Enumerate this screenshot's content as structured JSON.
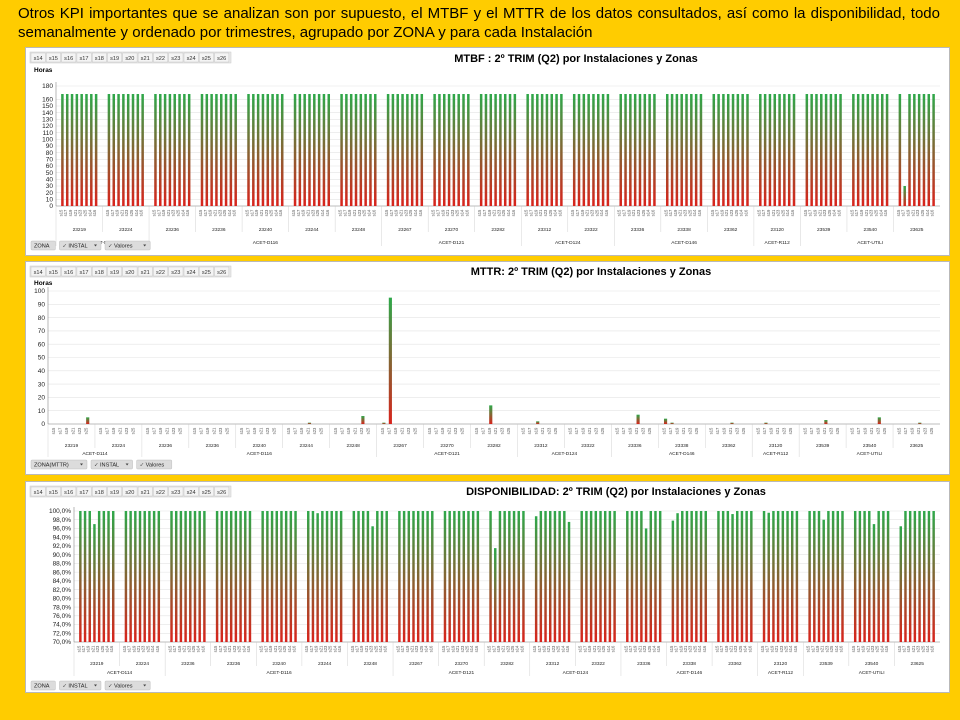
{
  "intro_text": "Otros KPI importantes que se analizan son por supuesto, el MTBF y el MTTR de  los datos consultados, así como la disponibilidad, todo semanalmente y ordenado por trimestres, agrupado por ZONA y para cada Instalación",
  "week_buttons": [
    "s14",
    "s15",
    "s16",
    "s17",
    "s18",
    "s19",
    "s20",
    "s21",
    "s22",
    "s23",
    "s24",
    "s25",
    "s26"
  ],
  "colors": {
    "page_bg": "#ffcc00",
    "bar_top": "#2ea84a",
    "bar_bottom": "#d9231c",
    "grid": "#e3e3e3",
    "field_button": "#dcdcdc"
  },
  "categories_x": [
    "s14",
    "s15",
    "s16",
    "s17",
    "s18",
    "s19",
    "s20",
    "s21",
    "s22",
    "s23",
    "s24",
    "s25",
    "s26"
  ],
  "chart_data": [
    {
      "type": "bar",
      "title": "MTBF :  2º TRIM (Q2) por Instalaciones y Zonas",
      "ylabel": "Horas",
      "ylim": [
        0,
        180
      ],
      "yticks": [
        0,
        10,
        20,
        30,
        40,
        50,
        60,
        70,
        80,
        90,
        100,
        110,
        120,
        130,
        140,
        150,
        160,
        180
      ],
      "bars_per_installation": 8,
      "installations": [
        "23219",
        "23224",
        "23236",
        "23236",
        "23240",
        "23244",
        "23248",
        "23267",
        "23270",
        "23282",
        "23312",
        "23322",
        "23336",
        "23338",
        "23362",
        "23120",
        "23539",
        "23540",
        "23625"
      ],
      "zones": [
        {
          "label": "ACET-D114",
          "span": 2
        },
        {
          "label": "ACET-D116",
          "span": 5
        },
        {
          "label": "ACET-D121",
          "span": 3
        },
        {
          "label": "ACET-D124",
          "span": 2
        },
        {
          "label": "ACET-D146",
          "span": 3
        },
        {
          "label": "ACET-R112",
          "span": 1
        },
        {
          "label": "ACET-UTILI",
          "span": 3
        }
      ],
      "series": [
        {
          "values": [
            [
              168,
              168,
              168,
              168,
              168,
              168,
              168,
              168
            ],
            [
              168,
              168,
              168,
              168,
              168,
              168,
              168,
              168
            ],
            [
              168,
              168,
              168,
              168,
              168,
              168,
              168,
              168
            ],
            [
              168,
              168,
              168,
              168,
              168,
              168,
              168,
              168
            ],
            [
              168,
              168,
              168,
              168,
              168,
              168,
              168,
              168
            ],
            [
              168,
              168,
              168,
              168,
              168,
              168,
              168,
              168
            ],
            [
              168,
              168,
              168,
              168,
              168,
              168,
              168,
              168
            ],
            [
              168,
              168,
              168,
              168,
              168,
              168,
              168,
              168
            ],
            [
              168,
              168,
              168,
              168,
              168,
              168,
              168,
              168
            ],
            [
              168,
              168,
              168,
              168,
              168,
              168,
              168,
              168
            ],
            [
              168,
              168,
              168,
              168,
              168,
              168,
              168,
              168
            ],
            [
              168,
              168,
              168,
              168,
              168,
              168,
              168,
              168
            ],
            [
              168,
              168,
              168,
              168,
              168,
              168,
              168,
              168
            ],
            [
              168,
              168,
              168,
              168,
              168,
              168,
              168,
              168
            ],
            [
              168,
              168,
              168,
              168,
              168,
              168,
              168,
              168
            ],
            [
              168,
              168,
              168,
              168,
              168,
              168,
              168,
              168
            ],
            [
              168,
              168,
              168,
              168,
              168,
              168,
              168,
              168
            ],
            [
              168,
              168,
              168,
              168,
              168,
              168,
              168,
              168
            ],
            [
              168,
              30,
              168,
              168,
              168,
              168,
              168,
              168
            ]
          ]
        }
      ],
      "field_buttons": [
        {
          "label": "ZONA",
          "dropdown": false
        },
        {
          "label": "INSTAL",
          "dropdown": true
        },
        {
          "label": "Valores",
          "dropdown": true
        }
      ]
    },
    {
      "type": "bar",
      "title": "MTTR:  2º TRIM (Q2) por Instalaciones y Zonas",
      "ylabel": "Horas",
      "ylim": [
        0,
        100
      ],
      "yticks": [
        0,
        10,
        20,
        30,
        40,
        50,
        60,
        70,
        80,
        90,
        100
      ],
      "bars_per_installation": 6,
      "installations": [
        "23219",
        "23224",
        "23236",
        "23236",
        "23240",
        "23244",
        "23248",
        "23267",
        "23270",
        "23282",
        "23312",
        "23322",
        "23336",
        "23338",
        "23362",
        "23120",
        "23539",
        "23540",
        "23625"
      ],
      "zones": [
        {
          "label": "ACET-D114",
          "span": 2
        },
        {
          "label": "ACET-D116",
          "span": 5
        },
        {
          "label": "ACET-D121",
          "span": 3
        },
        {
          "label": "ACET-D124",
          "span": 2
        },
        {
          "label": "ACET-D146",
          "span": 3
        },
        {
          "label": "ACET-R112",
          "span": 1
        },
        {
          "label": "ACET-UTILI",
          "span": 3
        }
      ],
      "series": [
        {
          "values": [
            [
              0,
              0,
              0,
              0,
              0,
              5
            ],
            [
              0,
              0,
              0,
              0,
              0,
              0
            ],
            [
              0,
              0,
              0,
              0,
              0,
              0
            ],
            [
              0,
              0,
              0,
              0,
              0,
              0
            ],
            [
              0,
              0,
              0,
              0,
              0,
              0
            ],
            [
              0,
              0,
              0,
              1,
              0,
              0
            ],
            [
              0,
              0,
              0,
              0,
              6,
              0
            ],
            [
              1,
              95,
              0,
              0,
              0,
              0
            ],
            [
              0,
              0,
              0,
              0,
              0,
              0
            ],
            [
              0,
              0,
              14,
              0,
              0,
              0
            ],
            [
              0,
              0,
              2,
              0,
              0,
              0
            ],
            [
              0,
              0,
              0,
              0,
              0,
              0
            ],
            [
              0,
              0,
              0,
              7,
              0,
              0
            ],
            [
              4,
              1,
              0,
              0,
              0,
              0
            ],
            [
              0,
              0,
              0,
              1,
              0,
              0
            ],
            [
              0,
              1,
              0,
              0,
              0,
              0
            ],
            [
              0,
              0,
              0,
              3,
              0,
              0
            ],
            [
              0,
              0,
              0,
              0,
              5,
              0
            ],
            [
              0,
              0,
              0,
              1,
              0,
              0
            ]
          ]
        }
      ],
      "field_buttons": [
        {
          "label": "ZONA(MTTR)",
          "dropdown": true
        },
        {
          "label": "INSTAL",
          "dropdown": true
        },
        {
          "label": "Valores",
          "dropdown": false
        }
      ]
    },
    {
      "type": "bar",
      "title": "DISPONIBILIDAD:  2º TRIM (Q2) por Instalaciones y Zonas",
      "ylim": [
        70,
        100
      ],
      "yticks": [
        "70,0%",
        "72,0%",
        "74,0%",
        "76,0%",
        "78,0%",
        "80,0%",
        "82,0%",
        "84,0%",
        "86,0%",
        "88,0%",
        "90,0%",
        "92,0%",
        "94,0%",
        "96,0%",
        "98,0%",
        "100,0%"
      ],
      "bars_per_installation": 8,
      "installations": [
        "23219",
        "23224",
        "23236",
        "23236",
        "23240",
        "23244",
        "23248",
        "23267",
        "23270",
        "23282",
        "23312",
        "23322",
        "23336",
        "23338",
        "23362",
        "23120",
        "23539",
        "23540",
        "23625"
      ],
      "zones": [
        {
          "label": "ACET-D114",
          "span": 2
        },
        {
          "label": "ACET-D116",
          "span": 5
        },
        {
          "label": "ACET-D121",
          "span": 3
        },
        {
          "label": "ACET-D124",
          "span": 2
        },
        {
          "label": "ACET-D146",
          "span": 3
        },
        {
          "label": "ACET-R112",
          "span": 1
        },
        {
          "label": "ACET-UTILI",
          "span": 3
        }
      ],
      "series": [
        {
          "values": [
            [
              100,
              100,
              100,
              97,
              100,
              100,
              100,
              100
            ],
            [
              100,
              100,
              100,
              100,
              100,
              100,
              100,
              100
            ],
            [
              100,
              100,
              100,
              100,
              100,
              100,
              100,
              100
            ],
            [
              100,
              100,
              100,
              100,
              100,
              100,
              100,
              100
            ],
            [
              100,
              100,
              100,
              100,
              100,
              100,
              100,
              100
            ],
            [
              100,
              100,
              99.5,
              100,
              100,
              100,
              100,
              100
            ],
            [
              100,
              100,
              100,
              100,
              96.5,
              100,
              100,
              100
            ],
            [
              100,
              100,
              100,
              100,
              100,
              100,
              100,
              100
            ],
            [
              100,
              100,
              100,
              100,
              100,
              100,
              100,
              100
            ],
            [
              100,
              91.5,
              100,
              100,
              100,
              100,
              100,
              100
            ],
            [
              98.8,
              100,
              100,
              100,
              100,
              100,
              100,
              97.5
            ],
            [
              100,
              100,
              100,
              100,
              100,
              100,
              100,
              100
            ],
            [
              100,
              100,
              100,
              100,
              96,
              100,
              100,
              100
            ],
            [
              97.8,
              99.5,
              100,
              100,
              100,
              100,
              100,
              100
            ],
            [
              100,
              100,
              100,
              99.3,
              100,
              100,
              100,
              100
            ],
            [
              100,
              99.6,
              100,
              100,
              100,
              100,
              100,
              100
            ],
            [
              100,
              100,
              100,
              98,
              100,
              100,
              100,
              100
            ],
            [
              100,
              100,
              100,
              100,
              97,
              100,
              100,
              100
            ],
            [
              96.5,
              100,
              100,
              100,
              100,
              100,
              100,
              100
            ]
          ]
        }
      ],
      "field_buttons": [
        {
          "label": "ZONA",
          "dropdown": false
        },
        {
          "label": "INSTAL",
          "dropdown": true
        },
        {
          "label": "Valores",
          "dropdown": true
        }
      ]
    }
  ]
}
